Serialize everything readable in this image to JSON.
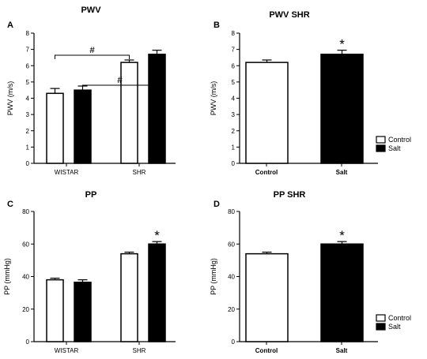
{
  "chart_data": [
    {
      "panel": "A",
      "type": "bar",
      "title": "PWV",
      "ylabel": "PWV (m/s)",
      "xlabel": "",
      "categories": [
        "WISTAR",
        "SHR"
      ],
      "ylim": [
        0,
        8
      ],
      "yticks": [
        "0",
        "1",
        "2",
        "3",
        "4",
        "5",
        "6",
        "7",
        "8"
      ],
      "series": [
        {
          "name": "Control",
          "color": "#ffffff",
          "values": [
            4.3,
            6.2
          ],
          "errors": [
            0.3,
            0.15
          ]
        },
        {
          "name": "Salt",
          "color": "#000000",
          "values": [
            4.5,
            6.7
          ],
          "errors": [
            0.25,
            0.25
          ]
        }
      ],
      "brackets": [
        {
          "from": "WISTAR-Salt",
          "to": "SHR-Salt",
          "label": "#"
        },
        {
          "from": "WISTAR-Control",
          "to": "SHR-Control",
          "label": "#"
        }
      ]
    },
    {
      "panel": "B",
      "type": "bar",
      "title": "PWV SHR",
      "ylabel": "PWV (m/s)",
      "xlabel": "",
      "categories": [
        "Control",
        "Salt"
      ],
      "ylim": [
        0,
        8
      ],
      "yticks": [
        "0",
        "1",
        "2",
        "3",
        "4",
        "5",
        "6",
        "7",
        "8"
      ],
      "values": [
        6.2,
        6.7
      ],
      "errors": [
        0.15,
        0.25
      ],
      "colors": [
        "#ffffff",
        "#000000"
      ],
      "annotations": [
        {
          "category": "Salt",
          "label": "*"
        }
      ],
      "legend": {
        "position": "bottom-right",
        "entries": [
          "Control",
          "Salt"
        ]
      }
    },
    {
      "panel": "C",
      "type": "bar",
      "title": "PP",
      "ylabel": "PP (mmHg)",
      "xlabel": "",
      "categories": [
        "WISTAR",
        "SHR"
      ],
      "ylim": [
        0,
        80
      ],
      "yticks": [
        "0",
        "20",
        "40",
        "60",
        "80"
      ],
      "series": [
        {
          "name": "Control",
          "color": "#ffffff",
          "values": [
            38,
            54
          ],
          "errors": [
            1,
            1
          ]
        },
        {
          "name": "Salt",
          "color": "#000000",
          "values": [
            36.5,
            60
          ],
          "errors": [
            1.5,
            1.5
          ]
        }
      ],
      "brackets": [
        {
          "from": "WISTAR-Salt",
          "to": "SHR-Salt",
          "label": "#"
        },
        {
          "from": "WISTAR-Control",
          "to": "SHR-Control",
          "label": "#"
        }
      ],
      "annotations": [
        {
          "category": "SHR-Salt",
          "label": "*"
        }
      ]
    },
    {
      "panel": "D",
      "type": "bar",
      "title": "PP SHR",
      "ylabel": "PP (mmHg)",
      "xlabel": "",
      "categories": [
        "Control",
        "Salt"
      ],
      "ylim": [
        0,
        80
      ],
      "yticks": [
        "0",
        "20",
        "40",
        "60",
        "80"
      ],
      "values": [
        54,
        60
      ],
      "errors": [
        1,
        1.5
      ],
      "colors": [
        "#ffffff",
        "#000000"
      ],
      "annotations": [
        {
          "category": "Salt",
          "label": "*"
        }
      ],
      "legend": {
        "position": "bottom-right",
        "entries": [
          "Control",
          "Salt"
        ]
      }
    }
  ]
}
